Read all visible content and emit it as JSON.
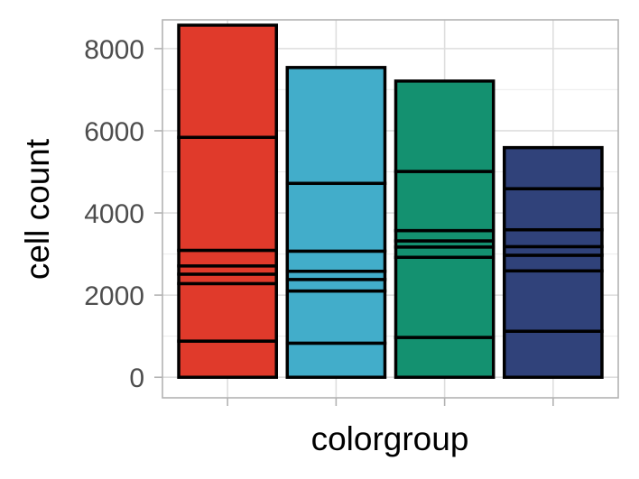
{
  "chart_data": {
    "type": "bar",
    "stacked": true,
    "xlabel": "colorgroup",
    "ylabel": "cell count",
    "ylim": [
      -500,
      8700
    ],
    "yticks": [
      0,
      2000,
      4000,
      6000,
      8000
    ],
    "grid": true,
    "legend": "none",
    "categories": [
      "",
      "",
      "",
      ""
    ],
    "colors": [
      "#E03A2B",
      "#42ADCA",
      "#149170",
      "#30427A"
    ],
    "bar_outline": "#000000",
    "stacks": [
      [
        880,
        1400,
        230,
        200,
        380,
        2750,
        2730
      ],
      [
        830,
        1270,
        280,
        200,
        490,
        1650,
        2820
      ],
      [
        970,
        1950,
        250,
        150,
        250,
        1440,
        2200
      ],
      [
        1120,
        1470,
        380,
        210,
        410,
        1000,
        1000
      ]
    ]
  }
}
